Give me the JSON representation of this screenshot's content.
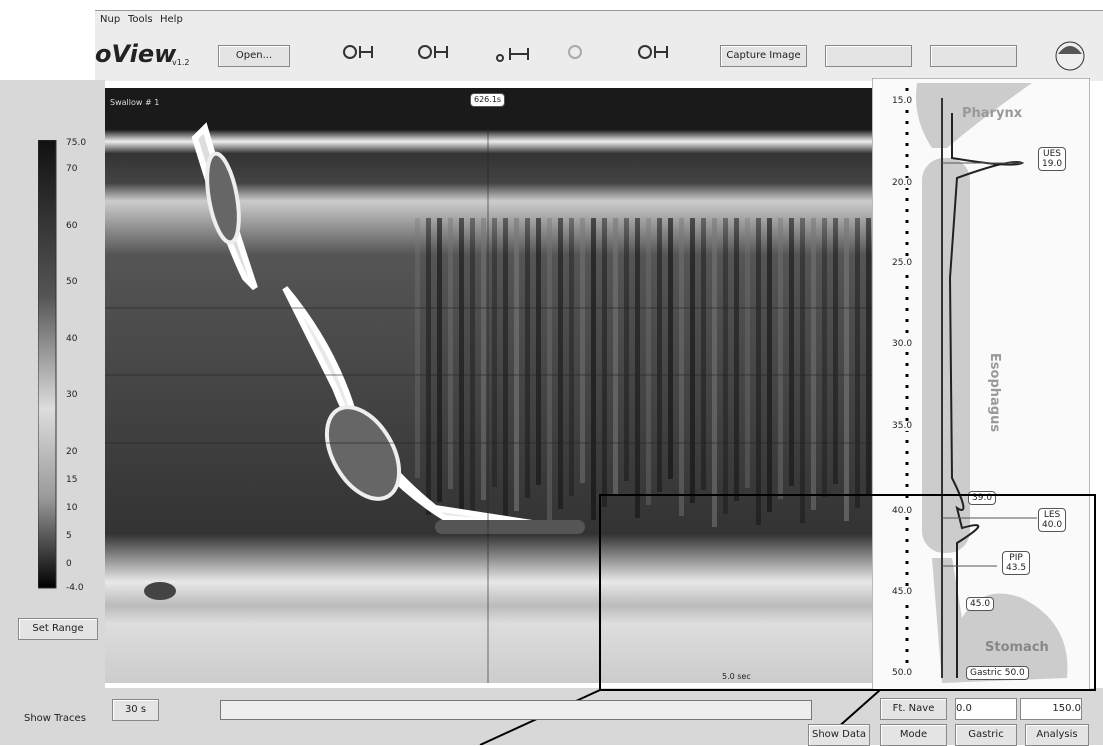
{
  "menu": [
    "Nup",
    "Tools",
    "Help"
  ],
  "logo": {
    "name": "oView",
    "version": "v1.2"
  },
  "toolbar": {
    "open": "Open...",
    "capture": "Capture Image"
  },
  "scale": {
    "labels": [
      "75.0",
      "70",
      "60",
      "50",
      "40",
      "30",
      "20",
      "15",
      "10",
      "5",
      "0",
      "-4.0"
    ],
    "set_range": "Set Range"
  },
  "plot": {
    "swallow": "Swallow # 1",
    "time": "626.1s",
    "duration": "5.0 sec"
  },
  "anatomy": {
    "depths": [
      "15.0",
      "20.0",
      "25.0",
      "30.0",
      "35.0",
      "40.0",
      "45.0",
      "50.0"
    ],
    "regions": [
      "Pharynx",
      "Esophagus",
      "Stomach"
    ],
    "markers": [
      {
        "label": "UES",
        "value": "19.0"
      },
      {
        "label": "LES",
        "value": "40.0"
      },
      {
        "label": "PIP",
        "value": "43.5"
      }
    ],
    "points": [
      "39.0",
      "45.0"
    ],
    "gastric": "Gastric 50.0"
  },
  "footer": {
    "show_traces": "Show Traces",
    "window": "30 s",
    "nav": "Ft. Nave",
    "start": "0.0",
    "end": "150.0",
    "buttons": [
      "Show Data",
      "Mode",
      "Gastric",
      "Analysis"
    ]
  }
}
